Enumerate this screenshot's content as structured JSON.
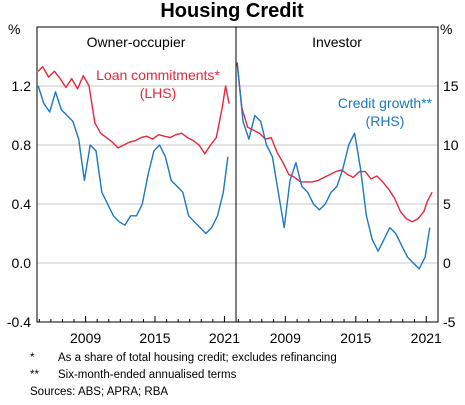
{
  "chart_data": {
    "title": "Housing Credit",
    "left_unit": "%",
    "right_unit": "%",
    "x_ticks": [
      "2009",
      "2015",
      "2021"
    ],
    "left_axis": {
      "range": [
        -0.4,
        1.6
      ],
      "ticks": [
        "1.2",
        "0.8",
        "0.4",
        "0.0",
        "-0.4"
      ],
      "tick_values": [
        1.2,
        0.8,
        0.4,
        0.0,
        -0.4
      ]
    },
    "right_axis": {
      "range": [
        -5,
        20
      ],
      "ticks": [
        "15",
        "10",
        "5",
        "0",
        "-5"
      ],
      "tick_values": [
        15,
        10,
        5,
        0,
        -5
      ]
    },
    "grid": true,
    "panels": [
      {
        "name": "Owner-occupier",
        "x_range": [
          2004.8,
          2022.0
        ],
        "series": [
          {
            "name": "Loan commitments*",
            "axis_note": "(LHS)",
            "axis": "left",
            "color": "#e8263a",
            "type": "line",
            "x": [
              2004.9,
              2005.3,
              2005.8,
              2006.3,
              2006.8,
              2007.3,
              2007.8,
              2008.3,
              2008.8,
              2009.3,
              2009.8,
              2010.3,
              2010.8,
              2011.3,
              2011.8,
              2012.3,
              2012.8,
              2013.3,
              2013.8,
              2014.3,
              2014.8,
              2015.3,
              2015.8,
              2016.3,
              2016.8,
              2017.3,
              2017.8,
              2018.3,
              2018.8,
              2019.3,
              2019.8,
              2020.3,
              2020.8,
              2021.1,
              2021.4
            ],
            "y": [
              1.3,
              1.33,
              1.26,
              1.3,
              1.25,
              1.19,
              1.25,
              1.18,
              1.27,
              1.2,
              0.95,
              0.88,
              0.85,
              0.82,
              0.78,
              0.8,
              0.82,
              0.83,
              0.85,
              0.86,
              0.84,
              0.87,
              0.86,
              0.85,
              0.87,
              0.88,
              0.85,
              0.83,
              0.8,
              0.74,
              0.8,
              0.85,
              1.05,
              1.2,
              1.08
            ]
          },
          {
            "name": "Credit growth**",
            "axis_note": "(RHS)",
            "axis": "right",
            "color": "#1c78c0",
            "type": "line",
            "x": [
              2004.9,
              2005.4,
              2005.9,
              2006.4,
              2006.9,
              2007.4,
              2007.9,
              2008.4,
              2008.9,
              2009.4,
              2009.9,
              2010.4,
              2010.9,
              2011.4,
              2011.9,
              2012.4,
              2012.9,
              2013.4,
              2013.9,
              2014.4,
              2014.9,
              2015.4,
              2015.9,
              2016.4,
              2016.9,
              2017.4,
              2017.9,
              2018.4,
              2018.9,
              2019.4,
              2019.9,
              2020.4,
              2020.9,
              2021.3
            ],
            "y": [
              15.0,
              13.5,
              12.8,
              14.5,
              13.0,
              12.5,
              12.0,
              10.5,
              7.0,
              10.0,
              9.5,
              6.0,
              5.0,
              4.0,
              3.5,
              3.2,
              4.0,
              4.0,
              5.0,
              7.5,
              9.5,
              10.0,
              9.0,
              7.0,
              6.5,
              6.0,
              4.0,
              3.5,
              3.0,
              2.5,
              3.0,
              4.0,
              6.0,
              9.0
            ]
          }
        ]
      },
      {
        "name": "Investor",
        "x_range": [
          2004.8,
          2022.0
        ],
        "series": [
          {
            "name": "Loan commitments*",
            "axis": "left",
            "color": "#e8263a",
            "type": "line",
            "x": [
              2004.9,
              2005.3,
              2005.8,
              2006.3,
              2006.8,
              2007.3,
              2007.8,
              2008.3,
              2008.8,
              2009.3,
              2009.8,
              2010.3,
              2010.8,
              2011.3,
              2011.8,
              2012.3,
              2012.8,
              2013.3,
              2013.8,
              2014.3,
              2014.8,
              2015.3,
              2015.8,
              2016.3,
              2016.8,
              2017.3,
              2017.8,
              2018.3,
              2018.8,
              2019.3,
              2019.8,
              2020.3,
              2020.8,
              2021.1,
              2021.5
            ],
            "y": [
              1.35,
              1.05,
              0.92,
              0.9,
              0.88,
              0.84,
              0.85,
              0.75,
              0.68,
              0.6,
              0.58,
              0.55,
              0.55,
              0.55,
              0.56,
              0.58,
              0.6,
              0.62,
              0.63,
              0.6,
              0.58,
              0.62,
              0.62,
              0.57,
              0.59,
              0.55,
              0.5,
              0.44,
              0.35,
              0.3,
              0.28,
              0.3,
              0.35,
              0.42,
              0.48
            ]
          },
          {
            "name": "Credit growth**",
            "axis": "right",
            "color": "#1c78c0",
            "type": "line",
            "x": [
              2004.9,
              2005.4,
              2005.9,
              2006.4,
              2006.9,
              2007.4,
              2007.9,
              2008.4,
              2008.9,
              2009.4,
              2009.9,
              2010.4,
              2010.9,
              2011.4,
              2011.9,
              2012.4,
              2012.9,
              2013.4,
              2013.9,
              2014.4,
              2014.9,
              2015.4,
              2015.9,
              2016.4,
              2016.9,
              2017.4,
              2017.9,
              2018.4,
              2018.9,
              2019.4,
              2019.9,
              2020.4,
              2020.9,
              2021.3
            ],
            "y": [
              17.0,
              12.0,
              10.5,
              12.5,
              12.0,
              10.0,
              9.0,
              6.0,
              3.0,
              7.0,
              8.5,
              6.5,
              6.0,
              5.0,
              4.5,
              5.0,
              6.0,
              6.5,
              8.0,
              10.0,
              11.0,
              8.0,
              4.0,
              2.0,
              1.0,
              2.0,
              3.0,
              2.5,
              1.5,
              0.5,
              0.0,
              -0.5,
              0.5,
              3.0
            ]
          }
        ]
      }
    ],
    "footnotes": [
      {
        "mark": "*",
        "text": "As a share of total housing credit; excludes refinancing"
      },
      {
        "mark": "**",
        "text": "Six-month-ended annualised terms"
      }
    ],
    "sources": "Sources: ABS; APRA; RBA"
  }
}
